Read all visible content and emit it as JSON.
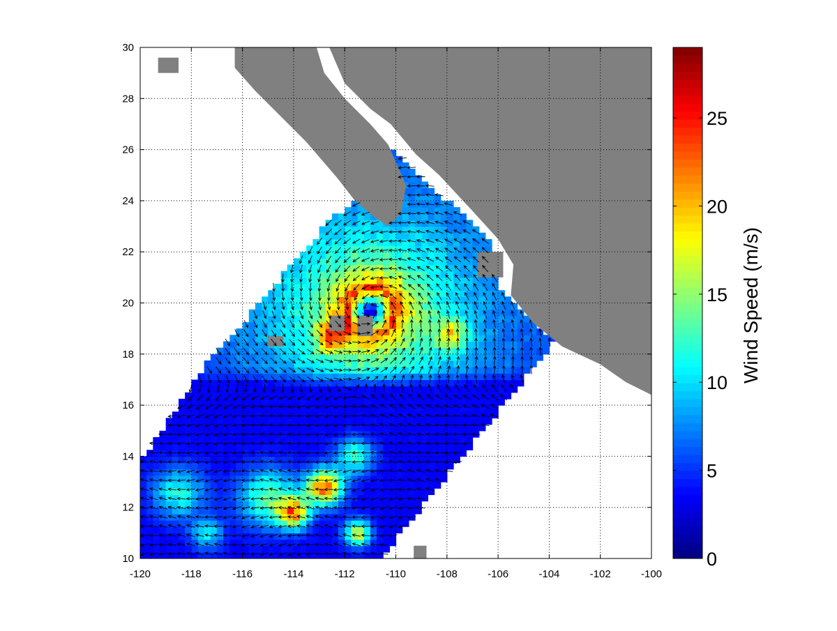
{
  "chart_data": {
    "type": "heatmap",
    "overlay": "wind vector arrows",
    "colormap": "jet",
    "xlim": [
      -120,
      -100
    ],
    "ylim": [
      10,
      30
    ],
    "xticks": [
      "-120",
      "-118",
      "-116",
      "-114",
      "-112",
      "-110",
      "-108",
      "-106",
      "-104",
      "-102",
      "-100"
    ],
    "yticks": [
      "10",
      "12",
      "14",
      "16",
      "18",
      "20",
      "22",
      "24",
      "26",
      "28",
      "30"
    ],
    "grid": true,
    "land_color": "#808080",
    "colorbar": {
      "label": "Wind Speed (m/s)",
      "ticks": [
        "0",
        "5",
        "10",
        "15",
        "20",
        "25"
      ],
      "range": [
        0,
        29
      ],
      "position": "right"
    },
    "storm_center": {
      "lon": -111,
      "lat": 19.7
    },
    "max_speed_approx": 29
  }
}
